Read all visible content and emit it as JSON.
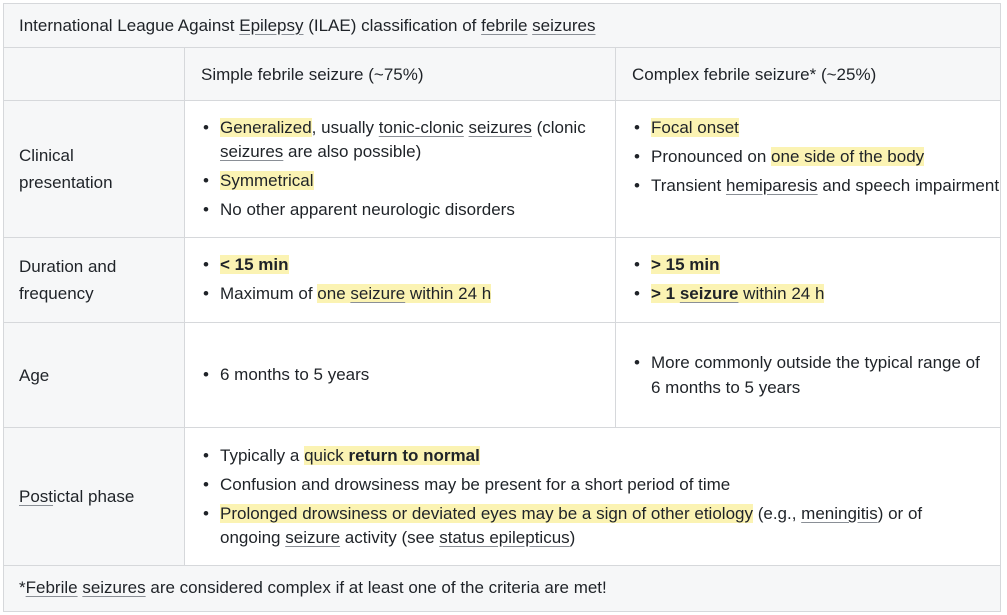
{
  "caption": {
    "p1": "International League Against ",
    "epilepsy": "Epilepsy",
    "p2": " (ILAE) classification of ",
    "febrile": "febrile",
    "p3": " ",
    "seizures": "seizures"
  },
  "header": {
    "empty": "",
    "simple": "Simple febrile seizure (~75%)",
    "complex": "Complex febrile seizure* (~25%)"
  },
  "rows": {
    "clinical": {
      "label": "Clinical presentation",
      "simple": {
        "b1_generalized": "Generalized",
        "b1_usually": ", usually ",
        "b1_tonic": "tonic-clonic",
        "b1_sp": " ",
        "b1_seizures": "seizures",
        "b1_clonic": " (clonic ",
        "b1_seizures2": "seizures",
        "b1_possible": " are also possible)",
        "b2": "Symmetrical",
        "b3": "No other apparent neurologic disorders"
      },
      "complex": {
        "b1": "Focal onset",
        "b2_pre": "Pronounced on ",
        "b2_hl": "one side of the body",
        "b3_pre": "Transient ",
        "b3_hemi": "hemiparesis",
        "b3_post": " and speech impairment"
      }
    },
    "duration": {
      "label": "Duration and frequency",
      "simple": {
        "b1": "< 15 min",
        "b2_pre": "Maximum of ",
        "b2_one": "one ",
        "b2_seizure": "seizure",
        "b2_within": " within 24 h"
      },
      "complex": {
        "b1": "> 15 min",
        "b2_gt": "> 1 ",
        "b2_seizure": "seizure",
        "b2_within": " within 24 h"
      }
    },
    "age": {
      "label": "Age",
      "simple": {
        "b1": "6 months to 5 years"
      },
      "complex": {
        "b1": "More commonly outside the typical range of 6 months to 5 years"
      }
    },
    "postictal": {
      "label_post": "Post",
      "label_ictal": "ictal",
      "label_phase": " phase",
      "b1_pre": "Typically a ",
      "b1_quick": "quick ",
      "b1_return": "return to normal",
      "b2": "Confusion and drowsiness may be present for a short period of time",
      "b3_hl": "Prolonged drowsiness or deviated eyes may be a sign of other etiology",
      "b3_eg": " (e.g., ",
      "b3_men": "meningitis",
      "b3_or": ") or of ongoing ",
      "b3_seizure": "seizure",
      "b3_act": " activity (see ",
      "b3_status": "status epilepticus",
      "b3_end": ")"
    }
  },
  "footnote": {
    "star": "*",
    "febrile": "Febrile",
    "sp": " ",
    "seizures": "seizures",
    "rest": " are considered complex if at least one of the criteria are met!"
  },
  "colors": {
    "highlight": "#fbf3b3",
    "header_bg": "#f6f7f8",
    "border": "#d6d8db"
  }
}
